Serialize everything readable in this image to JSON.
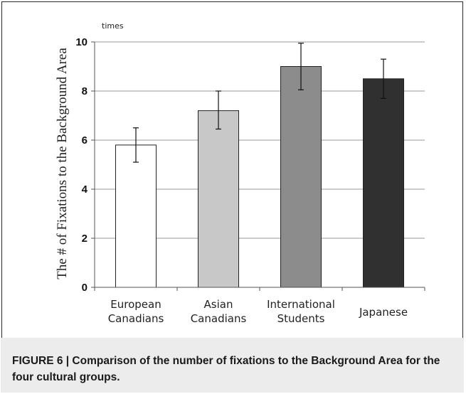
{
  "chart_data": {
    "type": "bar",
    "categories": [
      [
        "European",
        "Canadians"
      ],
      [
        "Asian",
        "Canadians"
      ],
      [
        "International",
        "Students"
      ],
      [
        "Japanese"
      ]
    ],
    "values": [
      5.8,
      7.2,
      9.0,
      8.5
    ],
    "error_low": [
      5.1,
      6.45,
      8.05,
      7.7
    ],
    "error_high": [
      6.5,
      8.0,
      9.95,
      9.3
    ],
    "bar_colors": [
      "#ffffff",
      "#c8c8c8",
      "#8c8c8c",
      "#303030"
    ],
    "ylabel": "The # of Fixations to the Background Area",
    "yunit": "times",
    "ylim": [
      0,
      10
    ],
    "yticks": [
      0,
      2,
      4,
      6,
      8,
      10
    ],
    "grid": true
  },
  "caption": {
    "text": "FIGURE 6 | Comparison of the number of fixations to the Background Area for the four cultural groups."
  }
}
